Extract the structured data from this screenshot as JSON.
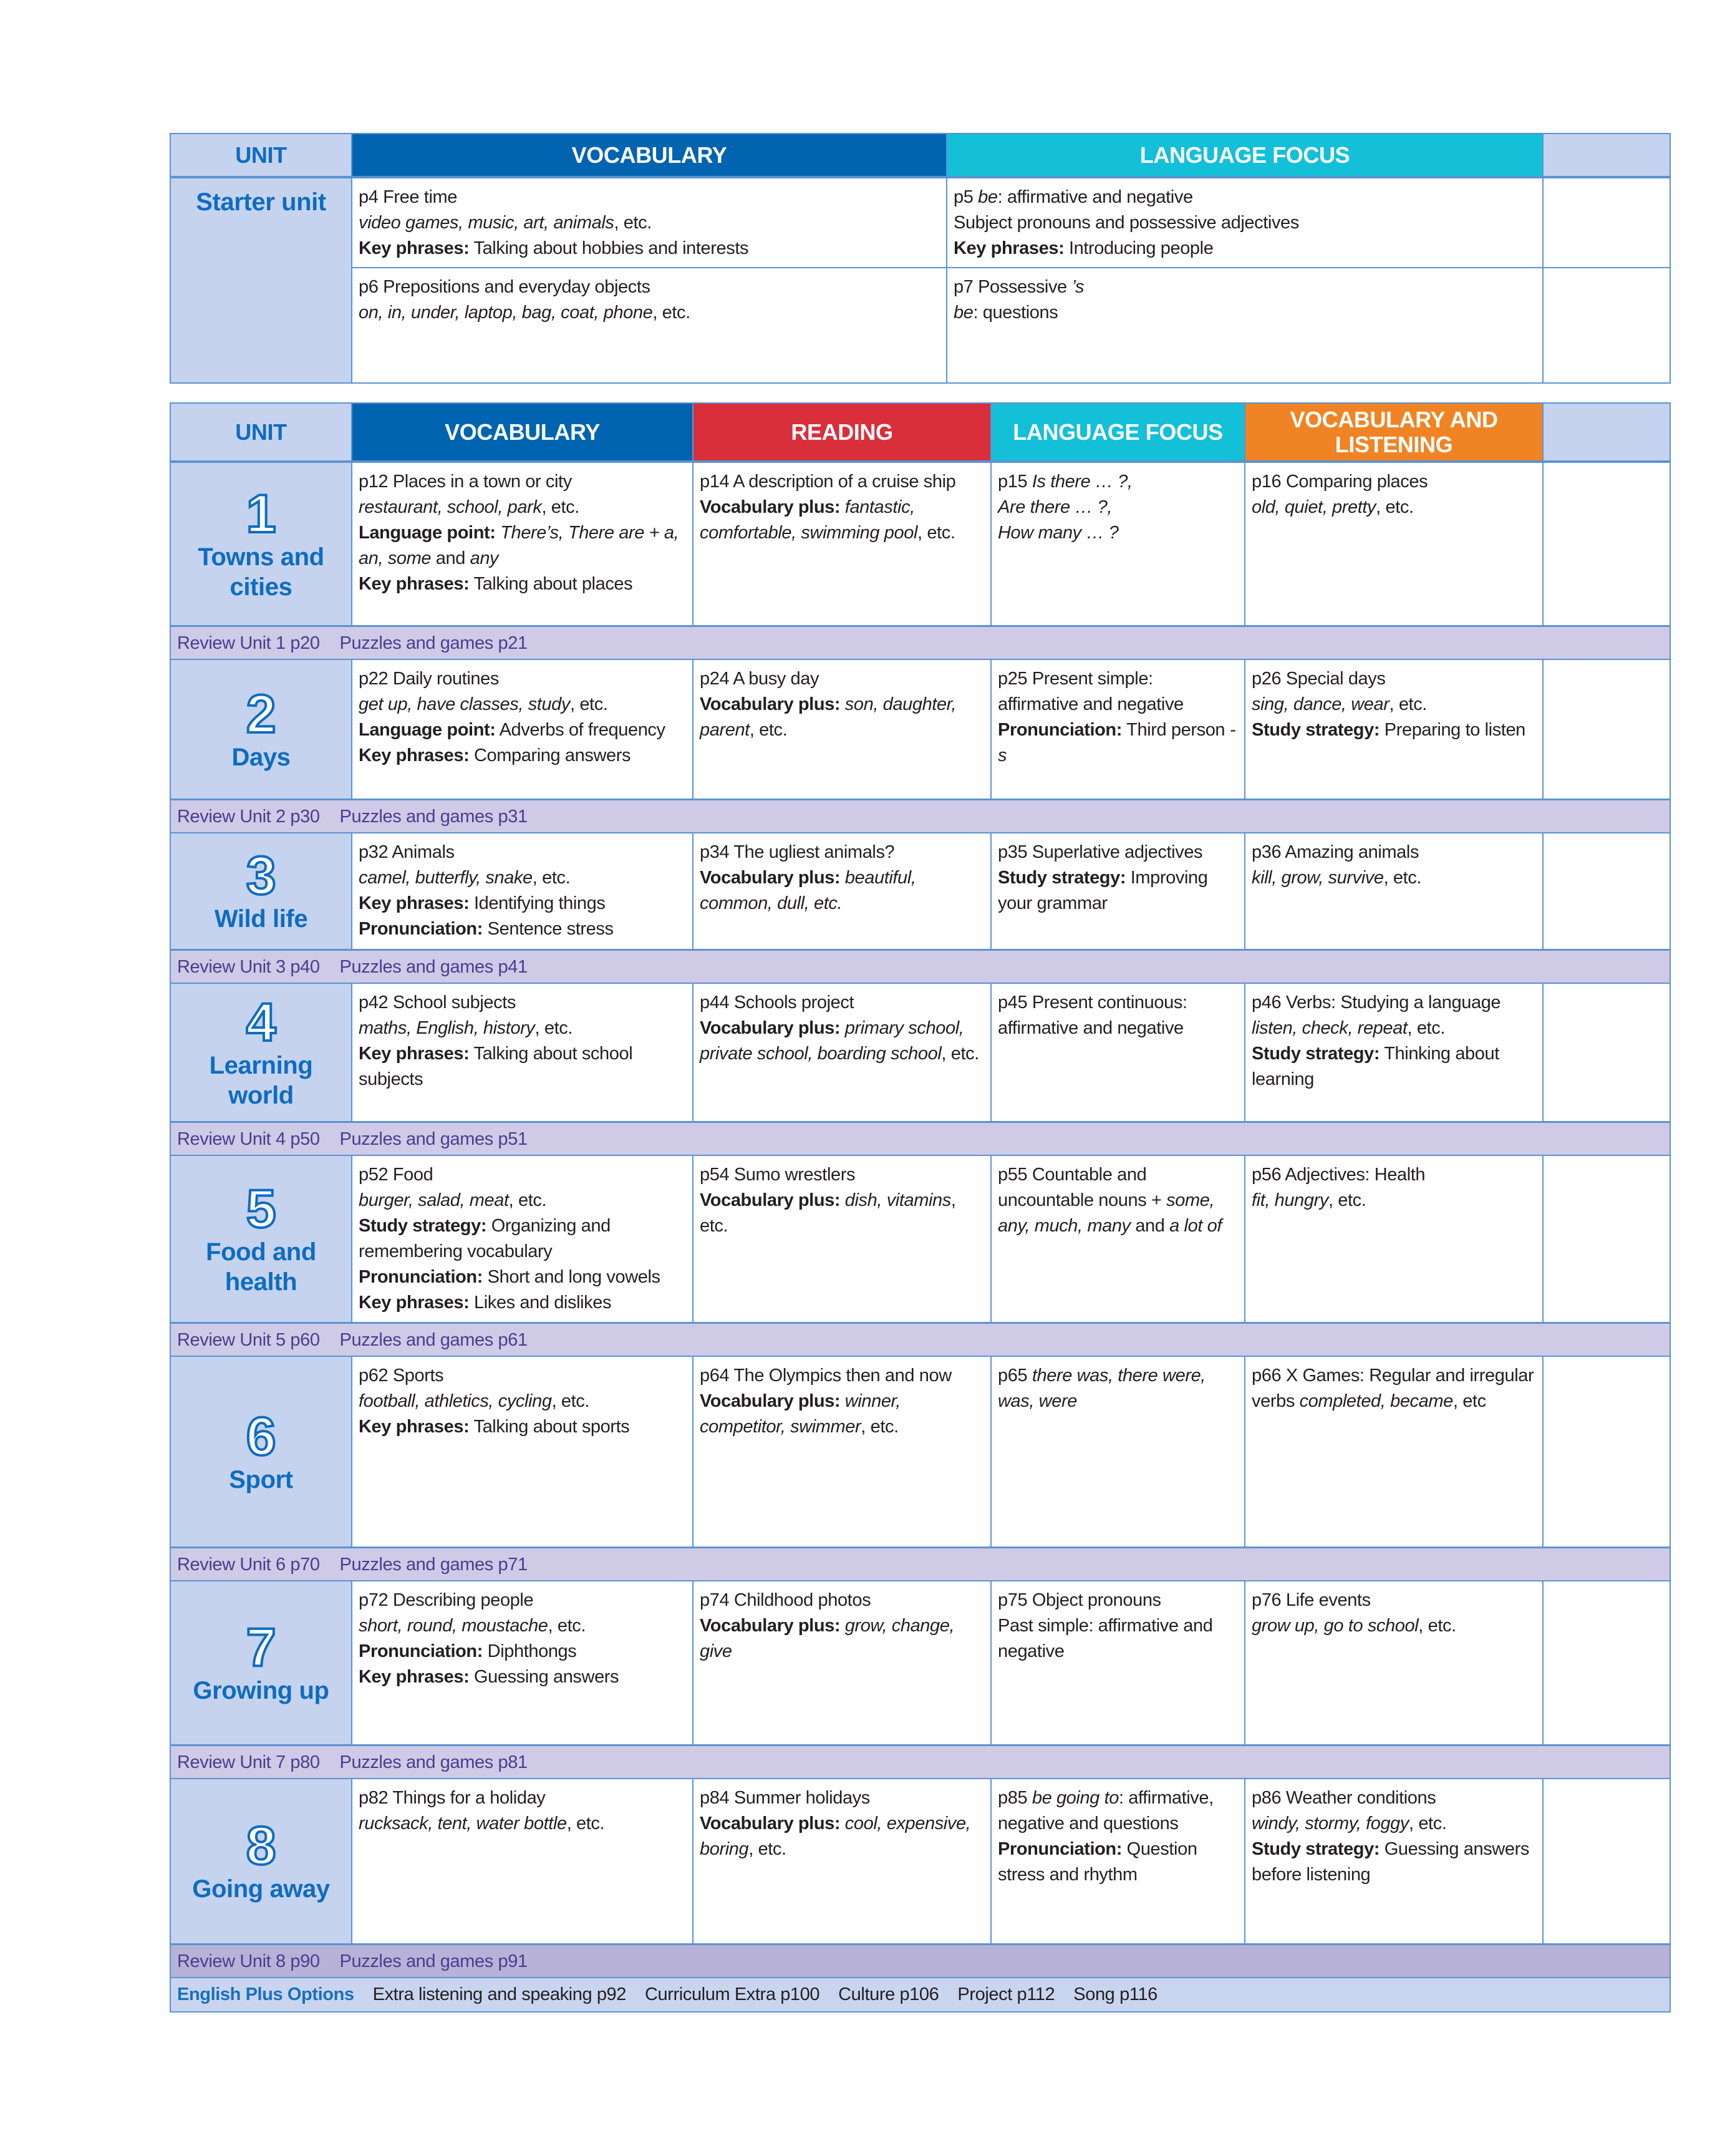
{
  "colors": {
    "vocabulary": "#0064b0",
    "reading": "#d92f3a",
    "language_focus": "#14bfd8",
    "vocab_listening": "#f08424",
    "unit_bg": "#c5d3ee",
    "review_bg": "#cfcae6",
    "accent_text": "#0f6cbf"
  },
  "starter": {
    "headers": {
      "unit": "UNIT",
      "vocabulary": "VOCABULARY",
      "language_focus": "LANGUAGE FOCUS"
    },
    "unit_name": "Starter unit",
    "rows": [
      {
        "vocabulary": [
          [
            [
              "p4 Free time",
              ""
            ]
          ],
          [
            [
              "video games, music, art, animals",
              "i"
            ],
            [
              ", etc.",
              ""
            ]
          ],
          [
            [
              "Key phrases:",
              "b"
            ],
            [
              " Talking about hobbies and interests",
              ""
            ]
          ]
        ],
        "language_focus": [
          [
            [
              "p5 ",
              ""
            ],
            [
              "be",
              "i"
            ],
            [
              ": affirmative and negative",
              ""
            ]
          ],
          [
            [
              "Subject pronouns and possessive adjectives",
              ""
            ]
          ],
          [
            [
              "Key phrases:",
              "b"
            ],
            [
              " Introducing people",
              ""
            ]
          ]
        ]
      },
      {
        "vocabulary": [
          [
            [
              "p6 Prepositions and everyday objects",
              ""
            ]
          ],
          [
            [
              "on, in, under, laptop, bag, coat, phone",
              "i"
            ],
            [
              ", etc.",
              ""
            ]
          ]
        ],
        "language_focus": [
          [
            [
              "p7 Possessive ",
              ""
            ],
            [
              "’s",
              "i"
            ]
          ],
          [
            [
              "be",
              "i"
            ],
            [
              ": questions",
              ""
            ]
          ]
        ]
      }
    ]
  },
  "main": {
    "headers": {
      "unit": "UNIT",
      "vocabulary": "VOCABULARY",
      "reading": "READING",
      "language_focus": "LANGUAGE FOCUS",
      "vocab_listening": "VOCABULARY AND LISTENING"
    },
    "units": [
      {
        "number": "1",
        "name": "Towns and cities",
        "vocabulary": [
          [
            [
              "p12 Places in a town or city",
              ""
            ]
          ],
          [
            [
              "restaurant, school, park",
              "i"
            ],
            [
              ", etc.",
              ""
            ]
          ],
          [
            [
              "Language point:",
              "b"
            ],
            [
              " There’s, There are + a, an, some",
              "i"
            ],
            [
              " and ",
              ""
            ],
            [
              "any",
              "i"
            ]
          ],
          [
            [
              "Key phrases:",
              "b"
            ],
            [
              " Talking about places",
              ""
            ]
          ]
        ],
        "reading": [
          [
            [
              "p14 A description of a cruise ship",
              ""
            ]
          ],
          [
            [
              "Vocabulary plus:",
              "b"
            ],
            [
              " fantastic, comfortable, swimming pool",
              "i"
            ],
            [
              ", etc.",
              ""
            ]
          ]
        ],
        "language_focus": [
          [
            [
              "p15 ",
              ""
            ],
            [
              "Is there … ?,",
              "i"
            ]
          ],
          [
            [
              "Are there … ?,",
              "i"
            ]
          ],
          [
            [
              "How many … ?",
              "i"
            ]
          ]
        ],
        "vocab_listening": [
          [
            [
              "p16 Comparing places",
              ""
            ]
          ],
          [
            [
              "old, quiet, pretty",
              "i"
            ],
            [
              ", etc.",
              ""
            ]
          ]
        ],
        "review": "Review Unit 1 p20",
        "puzzles": "Puzzles and games p21"
      },
      {
        "number": "2",
        "name": "Days",
        "vocabulary": [
          [
            [
              "p22 Daily routines",
              ""
            ]
          ],
          [
            [
              "get up, have classes, study",
              "i"
            ],
            [
              ", etc.",
              ""
            ]
          ],
          [
            [
              "Language point:",
              "b"
            ],
            [
              " Adverbs of frequency",
              ""
            ]
          ],
          [
            [
              "Key phrases:",
              "b"
            ],
            [
              " Comparing answers",
              ""
            ]
          ]
        ],
        "reading": [
          [
            [
              "p24 A busy day",
              ""
            ]
          ],
          [
            [
              "Vocabulary plus:",
              "b"
            ],
            [
              " son, daughter, parent",
              "i"
            ],
            [
              ", etc.",
              ""
            ]
          ]
        ],
        "language_focus": [
          [
            [
              "p25 Present simple: affirmative and negative",
              ""
            ]
          ],
          [
            [
              "Pronunciation:",
              "b"
            ],
            [
              " Third person ",
              ""
            ],
            [
              "-s",
              "i"
            ]
          ]
        ],
        "vocab_listening": [
          [
            [
              "p26 Special days",
              ""
            ]
          ],
          [
            [
              "sing, dance, wear",
              "i"
            ],
            [
              ", etc.",
              ""
            ]
          ],
          [
            [
              "Study strategy:",
              "b"
            ],
            [
              " Preparing to listen",
              ""
            ]
          ]
        ],
        "review": "Review Unit 2 p30",
        "puzzles": "Puzzles and games p31"
      },
      {
        "number": "3",
        "name": "Wild life",
        "vocabulary": [
          [
            [
              "p32 Animals",
              ""
            ]
          ],
          [
            [
              "camel, butterfly, snake",
              "i"
            ],
            [
              ", etc.",
              ""
            ]
          ],
          [
            [
              "Key phrases:",
              "b"
            ],
            [
              " Identifying things",
              ""
            ]
          ],
          [
            [
              "Pronunciation:",
              "b"
            ],
            [
              "  Sentence stress",
              ""
            ]
          ]
        ],
        "reading": [
          [
            [
              "p34 The ugliest animals?",
              ""
            ]
          ],
          [
            [
              "Vocabulary plus:",
              "b"
            ],
            [
              " beautiful, common, dull, etc.",
              "i"
            ]
          ]
        ],
        "language_focus": [
          [
            [
              "p35 Superlative adjectives",
              ""
            ]
          ],
          [
            [
              "Study strategy:",
              "b"
            ],
            [
              " Improving your grammar",
              ""
            ]
          ]
        ],
        "vocab_listening": [
          [
            [
              "p36 Amazing animals",
              ""
            ]
          ],
          [
            [
              "kill, grow, survive",
              "i"
            ],
            [
              ", etc.",
              ""
            ]
          ]
        ],
        "review": "Review Unit 3 p40",
        "puzzles": "Puzzles and games p41"
      },
      {
        "number": "4",
        "name": "Learning world",
        "vocabulary": [
          [
            [
              "p42 School subjects",
              ""
            ]
          ],
          [
            [
              "maths, English, history",
              "i"
            ],
            [
              ", etc.",
              ""
            ]
          ],
          [
            [
              "Key phrases:",
              "b"
            ],
            [
              " Talking about school subjects",
              ""
            ]
          ]
        ],
        "reading": [
          [
            [
              "p44 Schools project",
              ""
            ]
          ],
          [
            [
              "Vocabulary plus:",
              "b"
            ],
            [
              " primary school, private school, boarding school",
              "i"
            ],
            [
              ", etc.",
              ""
            ]
          ]
        ],
        "language_focus": [
          [
            [
              "p45 Present continuous: affirmative and negative",
              ""
            ]
          ]
        ],
        "vocab_listening": [
          [
            [
              "p46 Verbs: Studying a language",
              ""
            ]
          ],
          [
            [
              "listen, check, repeat",
              "i"
            ],
            [
              ", etc.",
              ""
            ]
          ],
          [
            [
              "Study strategy:",
              "b"
            ],
            [
              " Thinking about learning",
              ""
            ]
          ]
        ],
        "review": "Review Unit 4 p50",
        "puzzles": "Puzzles and games p51"
      },
      {
        "number": "5",
        "name": "Food and health",
        "vocabulary": [
          [
            [
              "p52 Food",
              ""
            ]
          ],
          [
            [
              "burger, salad, meat",
              "i"
            ],
            [
              ", etc.",
              ""
            ]
          ],
          [
            [
              "Study strategy:",
              "b"
            ],
            [
              " Organizing and remembering vocabulary",
              ""
            ]
          ],
          [
            [
              "Pronunciation:",
              "b"
            ],
            [
              " Short and long vowels",
              ""
            ]
          ],
          [
            [
              "Key phrases:",
              "b"
            ],
            [
              " Likes and dislikes",
              ""
            ]
          ]
        ],
        "reading": [
          [
            [
              "p54 Sumo wrestlers",
              ""
            ]
          ],
          [
            [
              "Vocabulary plus:",
              "b"
            ],
            [
              " dish, vitamins",
              "i"
            ],
            [
              ", etc.",
              ""
            ]
          ]
        ],
        "language_focus": [
          [
            [
              "p55 Countable and uncountable nouns + ",
              ""
            ],
            [
              "some, any, much, many",
              "i"
            ],
            [
              " and ",
              ""
            ],
            [
              "a lot of",
              "i"
            ]
          ]
        ],
        "vocab_listening": [
          [
            [
              "p56 Adjectives: Health",
              ""
            ]
          ],
          [
            [
              "fit, hungry",
              "i"
            ],
            [
              ", etc.",
              ""
            ]
          ]
        ],
        "review": "Review Unit 5 p60",
        "puzzles": "Puzzles and games p61"
      },
      {
        "number": "6",
        "name": "Sport",
        "vocabulary": [
          [
            [
              "p62 Sports",
              ""
            ]
          ],
          [
            [
              "football, athletics, cycling",
              "i"
            ],
            [
              ", etc.",
              ""
            ]
          ],
          [
            [
              "Key phrases:",
              "b"
            ],
            [
              " Talking about sports",
              ""
            ]
          ]
        ],
        "reading": [
          [
            [
              "p64 The Olympics then and now",
              ""
            ]
          ],
          [
            [
              "Vocabulary plus:",
              "b"
            ],
            [
              " winner, competitor, swimmer",
              "i"
            ],
            [
              ", etc.",
              ""
            ]
          ]
        ],
        "language_focus": [
          [
            [
              "p65 ",
              ""
            ],
            [
              "there was, there were, was, were",
              "i"
            ]
          ]
        ],
        "vocab_listening": [
          [
            [
              "p66 X Games: Regular and irregular verbs ",
              ""
            ],
            [
              "completed, became",
              "i"
            ],
            [
              ", etc",
              ""
            ]
          ]
        ],
        "review": "Review Unit 6 p70",
        "puzzles": "Puzzles and games p71"
      },
      {
        "number": "7",
        "name": "Growing up",
        "vocabulary": [
          [
            [
              "p72 Describing people",
              ""
            ]
          ],
          [
            [
              "short, round, moustache",
              "i"
            ],
            [
              ", etc.",
              ""
            ]
          ],
          [
            [
              "Pronunciation:",
              "b"
            ],
            [
              " Diphthongs",
              ""
            ]
          ],
          [
            [
              "Key phrases:",
              "b"
            ],
            [
              " Guessing answers",
              ""
            ]
          ]
        ],
        "reading": [
          [
            [
              "p74 Childhood photos",
              ""
            ]
          ],
          [
            [
              "Vocabulary plus:",
              "b"
            ],
            [
              " grow, change, give",
              "i"
            ]
          ]
        ],
        "language_focus": [
          [
            [
              "p75 Object pronouns",
              ""
            ]
          ],
          [
            [
              "Past simple: affirmative and negative",
              ""
            ]
          ]
        ],
        "vocab_listening": [
          [
            [
              "p76 Life events",
              ""
            ]
          ],
          [
            [
              "grow up, go to school",
              "i"
            ],
            [
              ", etc.",
              ""
            ]
          ]
        ],
        "review": "Review Unit 7 p80",
        "puzzles": "Puzzles and games p81"
      },
      {
        "number": "8",
        "name": "Going away",
        "vocabulary": [
          [
            [
              "p82 Things for a holiday",
              ""
            ]
          ],
          [
            [
              "rucksack, tent, water bottle",
              "i"
            ],
            [
              ", etc.",
              ""
            ]
          ]
        ],
        "reading": [
          [
            [
              "p84 Summer holidays",
              ""
            ]
          ],
          [
            [
              "Vocabulary plus:",
              "b"
            ],
            [
              " cool, expensive, boring",
              "i"
            ],
            [
              ", etc.",
              ""
            ]
          ]
        ],
        "language_focus": [
          [
            [
              "p85 ",
              ""
            ],
            [
              "be going to",
              "i"
            ],
            [
              ": affirmative, negative and questions",
              ""
            ]
          ],
          [
            [
              "Pronunciation:",
              "b"
            ],
            [
              " Question stress and rhythm",
              ""
            ]
          ]
        ],
        "vocab_listening": [
          [
            [
              "p86 Weather conditions",
              ""
            ]
          ],
          [
            [
              "windy, stormy, foggy",
              "i"
            ],
            [
              ", etc.",
              ""
            ]
          ],
          [
            [
              "Study strategy:",
              "b"
            ],
            [
              " Guessing answers before listening",
              ""
            ]
          ]
        ],
        "review": "Review Unit 8 p90",
        "puzzles": "Puzzles and games p91"
      }
    ],
    "options": {
      "title": "English Plus Options",
      "items": [
        "Extra listening and speaking p92",
        "Curriculum Extra p100",
        "Culture p106",
        "Project p112",
        "Song p116"
      ]
    }
  }
}
